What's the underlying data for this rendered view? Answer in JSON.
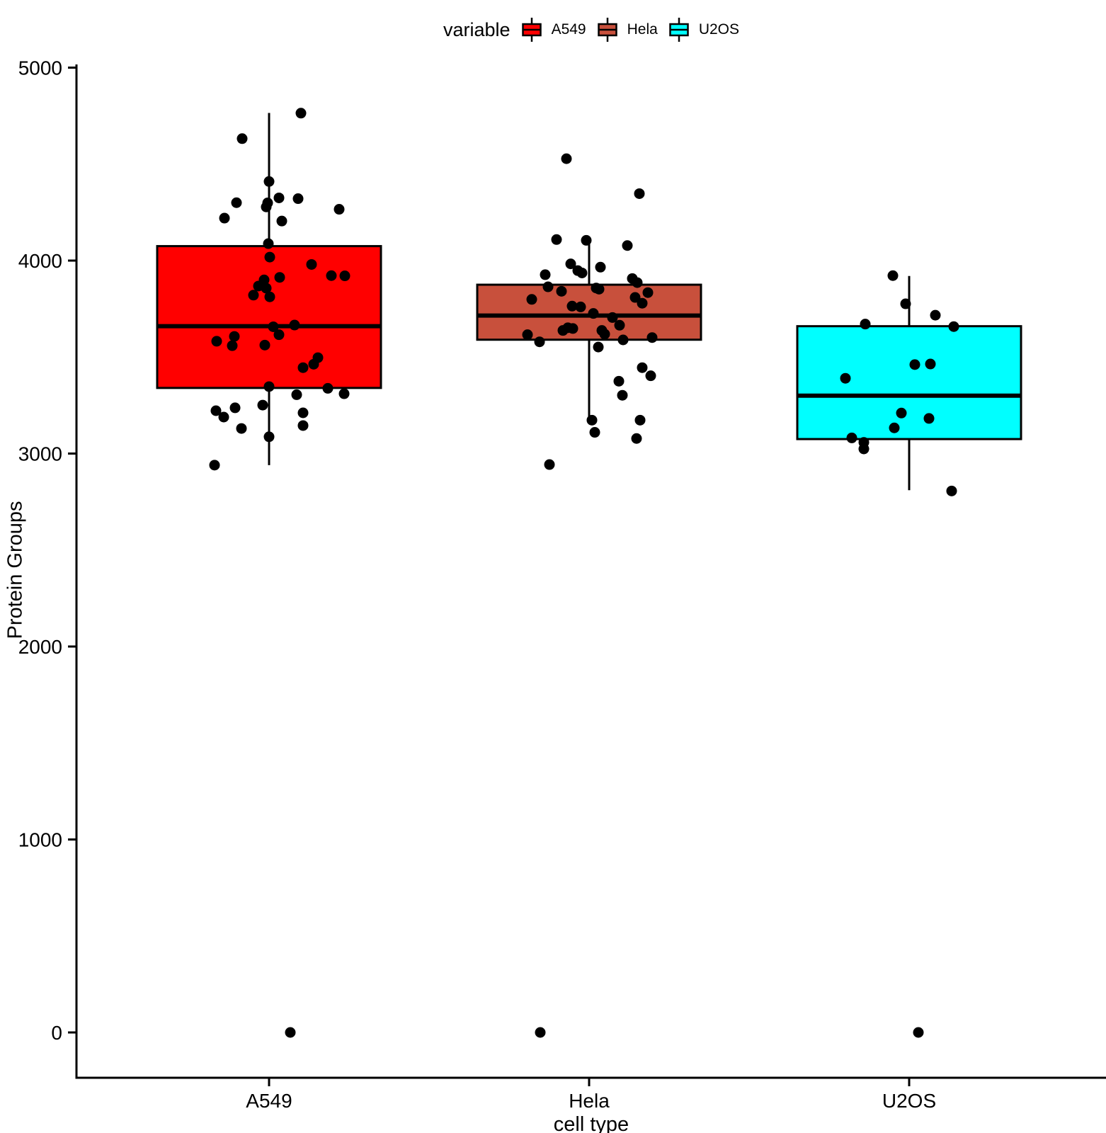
{
  "legend": {
    "title": "variable",
    "items": [
      {
        "label": "A549",
        "color": "#FF0000"
      },
      {
        "label": "Hela",
        "color": "#C8503C"
      },
      {
        "label": "U2OS",
        "color": "#00FFFF"
      }
    ]
  },
  "axes": {
    "x_label": "cell type",
    "y_label": "Protein Groups",
    "y_ticks": [
      0,
      1000,
      2000,
      3000,
      4000,
      5000
    ]
  },
  "chart_data": {
    "type": "boxplot",
    "title": "",
    "xlabel": "cell type",
    "ylabel": "Protein Groups",
    "ylim": [
      0,
      5000
    ],
    "legend_title": "variable",
    "legend_position": "top",
    "grid": false,
    "point_color": "#000000",
    "categories": [
      "A549",
      "Hela",
      "U2OS"
    ],
    "groups": [
      {
        "label": "A549",
        "color": "#FF0000",
        "box": {
          "whisker_low": 2940,
          "q1": 3340,
          "median": 3660,
          "q3": 4075,
          "whisker_high": 4765
        },
        "points": [
          [
            45,
            4764
          ],
          [
            -38,
            4632
          ],
          [
            0,
            4410
          ],
          [
            14,
            4325
          ],
          [
            41,
            4321
          ],
          [
            -2,
            4299
          ],
          [
            -4,
            4278
          ],
          [
            -46,
            4300
          ],
          [
            -63,
            4220
          ],
          [
            99,
            4266
          ],
          [
            18,
            4205
          ],
          [
            -1,
            4088
          ],
          [
            1,
            4018
          ],
          [
            60,
            3980
          ],
          [
            15,
            3913
          ],
          [
            88,
            3922
          ],
          [
            107,
            3921
          ],
          [
            -7,
            3900
          ],
          [
            -15,
            3868
          ],
          [
            -4,
            3857
          ],
          [
            -22,
            3821
          ],
          [
            1,
            3812
          ],
          [
            6,
            3657
          ],
          [
            36,
            3666
          ],
          [
            14,
            3616
          ],
          [
            -49,
            3607
          ],
          [
            -74,
            3582
          ],
          [
            -52,
            3559
          ],
          [
            -6,
            3562
          ],
          [
            69,
            3497
          ],
          [
            63,
            3463
          ],
          [
            48,
            3445
          ],
          [
            0,
            3347
          ],
          [
            83,
            3338
          ],
          [
            39,
            3305
          ],
          [
            106,
            3310
          ],
          [
            -9,
            3251
          ],
          [
            -48,
            3237
          ],
          [
            -75,
            3222
          ],
          [
            48,
            3211
          ],
          [
            -64,
            3189
          ],
          [
            48,
            3145
          ],
          [
            -39,
            3130
          ],
          [
            0,
            3087
          ],
          [
            -77,
            2940
          ],
          [
            30,
            0
          ]
        ]
      },
      {
        "label": "Hela",
        "color": "#C8503C",
        "box": {
          "whisker_low": 3175,
          "q1": 3590,
          "median": 3715,
          "q3": 3875,
          "whisker_high": 4105
        },
        "points": [
          [
            -32,
            4528
          ],
          [
            71,
            4347
          ],
          [
            -46,
            4109
          ],
          [
            -4,
            4105
          ],
          [
            54,
            4078
          ],
          [
            -26,
            3983
          ],
          [
            16,
            3966
          ],
          [
            -16,
            3948
          ],
          [
            -10,
            3936
          ],
          [
            -62,
            3927
          ],
          [
            61,
            3907
          ],
          [
            68,
            3886
          ],
          [
            -58,
            3864
          ],
          [
            10,
            3858
          ],
          [
            14,
            3852
          ],
          [
            -39,
            3841
          ],
          [
            83,
            3834
          ],
          [
            65,
            3809
          ],
          [
            -81,
            3799
          ],
          [
            75,
            3779
          ],
          [
            -24,
            3764
          ],
          [
            -12,
            3760
          ],
          [
            6,
            3726
          ],
          [
            33,
            3705
          ],
          [
            43,
            3665
          ],
          [
            -30,
            3652
          ],
          [
            -23,
            3648
          ],
          [
            -37,
            3638
          ],
          [
            18,
            3638
          ],
          [
            22,
            3619
          ],
          [
            -87,
            3616
          ],
          [
            89,
            3601
          ],
          [
            48,
            3589
          ],
          [
            -70,
            3579
          ],
          [
            13,
            3552
          ],
          [
            75,
            3445
          ],
          [
            87,
            3403
          ],
          [
            42,
            3375
          ],
          [
            47,
            3302
          ],
          [
            4,
            3173
          ],
          [
            72,
            3173
          ],
          [
            8,
            3110
          ],
          [
            67,
            3078
          ],
          [
            -56,
            2943
          ],
          [
            -69,
            0
          ]
        ]
      },
      {
        "label": "U2OS",
        "color": "#00FFFF",
        "box": {
          "whisker_low": 2810,
          "q1": 3075,
          "median": 3300,
          "q3": 3660,
          "whisker_high": 3920
        },
        "points": [
          [
            -23,
            3922
          ],
          [
            -5,
            3776
          ],
          [
            37,
            3717
          ],
          [
            -62,
            3671
          ],
          [
            63,
            3658
          ],
          [
            30,
            3464
          ],
          [
            8,
            3461
          ],
          [
            -90,
            3390
          ],
          [
            -11,
            3210
          ],
          [
            28,
            3182
          ],
          [
            -21,
            3133
          ],
          [
            -81,
            3081
          ],
          [
            -64,
            3058
          ],
          [
            -64,
            3024
          ],
          [
            60,
            2806
          ],
          [
            13,
            0
          ]
        ]
      }
    ]
  }
}
